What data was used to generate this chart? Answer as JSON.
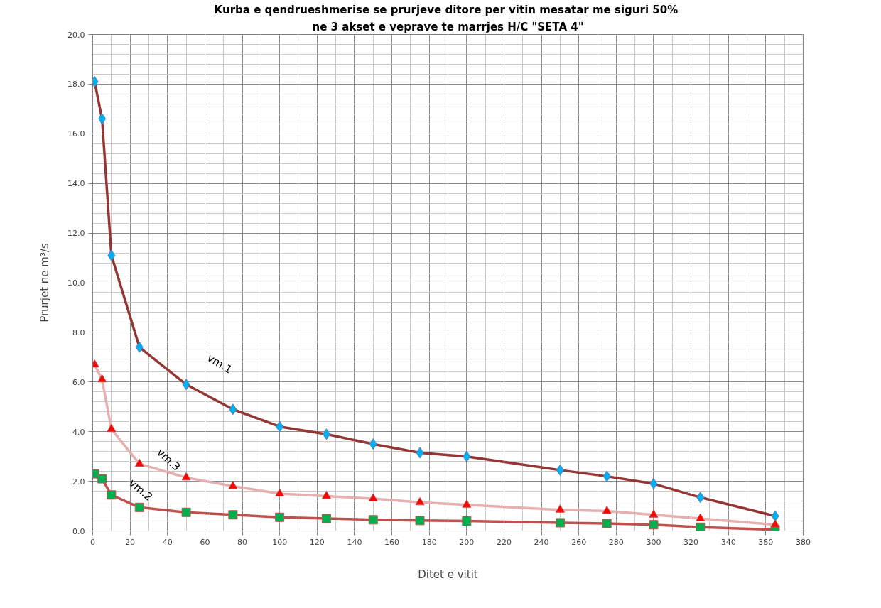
{
  "chart_data": {
    "type": "line",
    "title": "Kurba e qendrueshmerise se prurjeve ditore per vitin mesatar me siguri  50%",
    "subtitle": "ne 3 akset e veprave te marrjes H/C \"SETA 4\"",
    "xlabel": "Ditet e vitit",
    "ylabel": "Prurjet ne m³/s",
    "x": [
      1,
      5,
      10,
      25,
      50,
      75,
      100,
      125,
      150,
      175,
      200,
      250,
      275,
      300,
      325,
      365
    ],
    "series": [
      {
        "name": "vm.1",
        "color": "#943634",
        "marker": "diamond",
        "colors": [
          "#00b0f0",
          "#00b0f0",
          "#00b0f0",
          "#00b0f0",
          "#00b0f0",
          "#00b0f0",
          "#00b0f0",
          "#00b0f0",
          "#00b0f0",
          "#00b0f0",
          "#00b0f0",
          "#00b0f0",
          "#00b0f0",
          "#00b0f0",
          "#00b0f0",
          "#00b0f0"
        ],
        "values": [
          18.1,
          16.6,
          11.1,
          7.4,
          5.9,
          4.9,
          4.2,
          3.9,
          3.5,
          3.15,
          3.0,
          2.45,
          2.2,
          1.9,
          1.35,
          0.6
        ]
      },
      {
        "name": "vm.2",
        "color": "#c0504d",
        "marker": "square",
        "colors": [
          "#00b050",
          "#00b050",
          "#00b050",
          "#00b050",
          "#00b050",
          "#00b050",
          "#00b050",
          "#00b050",
          "#00b050",
          "#00b050",
          "#00b050",
          "#00b050",
          "#00b050",
          "#00b050",
          "#00b050",
          "#00b050"
        ],
        "values": [
          2.3,
          2.1,
          1.45,
          0.95,
          0.75,
          0.65,
          0.55,
          0.5,
          0.45,
          0.42,
          0.4,
          0.33,
          0.3,
          0.25,
          0.15,
          0.05
        ]
      },
      {
        "name": "vm.3",
        "color": "#e6b0b0",
        "marker": "triangle",
        "colors": [
          "#ff0000",
          "#ff0000",
          "#ff0000",
          "#ff0000",
          "#ff0000",
          "#ff0000",
          "#ff0000",
          "#ff0000",
          "#ff0000",
          "#ff0000",
          "#ff0000",
          "#ff0000",
          "#ff0000",
          "#ff0000",
          "#ff0000",
          "#ff0000"
        ],
        "values": [
          6.7,
          6.1,
          4.1,
          2.7,
          2.15,
          1.8,
          1.5,
          1.4,
          1.3,
          1.15,
          1.05,
          0.85,
          0.8,
          0.65,
          0.5,
          0.25
        ]
      }
    ],
    "xlim": [
      0,
      380
    ],
    "ylim": [
      0,
      20
    ],
    "xticks": [
      0,
      20,
      40,
      60,
      80,
      100,
      120,
      140,
      160,
      180,
      200,
      220,
      240,
      260,
      280,
      300,
      320,
      340,
      360,
      380
    ],
    "yticks": [
      {
        "value": 0,
        "label": "0.0"
      },
      {
        "value": 2,
        "label": "2.0"
      },
      {
        "value": 4,
        "label": "4.0"
      },
      {
        "value": 6,
        "label": "6.0"
      },
      {
        "value": 8,
        "label": "8.0"
      },
      {
        "value": 10,
        "label": "10.0"
      },
      {
        "value": 12,
        "label": "12.0"
      },
      {
        "value": 14,
        "label": "14.0"
      },
      {
        "value": 16,
        "label": "16.0"
      },
      {
        "value": 18,
        "label": "18.0"
      },
      {
        "value": 20,
        "label": "20.0"
      }
    ],
    "grid": true,
    "line_style": "solid"
  }
}
